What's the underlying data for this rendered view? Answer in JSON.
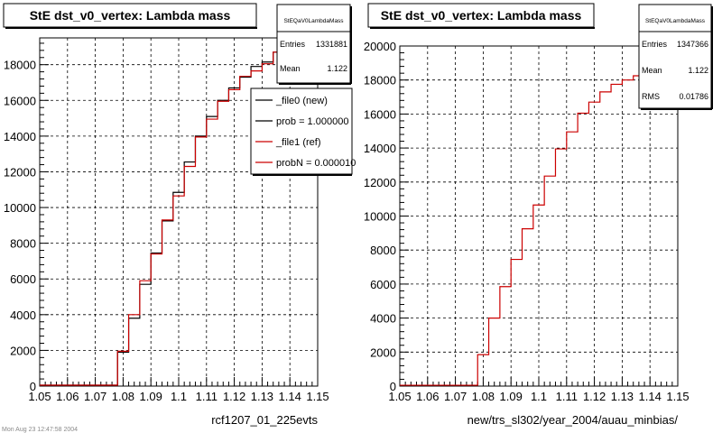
{
  "canvas": {
    "footer_text": "Mon Aug 23 12:47:58 2004"
  },
  "chart_data": [
    {
      "type": "histogram-step",
      "title": "StE dst_v0_vertex: Lambda mass",
      "xlabel": "rcf1207_01_225evts",
      "ylabel": "",
      "xlim": [
        1.05,
        1.15
      ],
      "ylim": [
        0,
        19500
      ],
      "xticks": [
        1.05,
        1.06,
        1.07,
        1.08,
        1.09,
        1.1,
        1.11,
        1.12,
        1.13,
        1.14,
        1.15
      ],
      "xtick_labels": [
        "1.05",
        "1.06",
        "1.07",
        "1.08",
        "1.09",
        "1.1",
        "1.11",
        "1.12",
        "1.13",
        "1.14",
        "1.15"
      ],
      "yticks": [
        0,
        2000,
        4000,
        6000,
        8000,
        10000,
        12000,
        14000,
        16000,
        18000
      ],
      "grid": true,
      "stats_box": {
        "title": "StEQaV0LambdaMass",
        "rows": [
          {
            "label": "Entries",
            "value": "1331881"
          },
          {
            "label": "Mean",
            "value": "1.122"
          }
        ]
      },
      "legend": {
        "position": "top-right",
        "entries": [
          "_file0 (new)",
          "prob = 1.000000",
          "_file1 (ref)",
          "probN = 0.000010"
        ],
        "colors": [
          "#000000",
          "#000000",
          "#cc0000",
          "#cc0000"
        ]
      },
      "bin_edges": [
        1.05,
        1.078,
        1.082,
        1.086,
        1.09,
        1.094,
        1.098,
        1.102,
        1.106,
        1.11,
        1.114,
        1.118,
        1.122,
        1.126,
        1.13,
        1.134,
        1.138,
        1.142,
        1.146
      ],
      "series": [
        {
          "color": "#000000",
          "values": [
            50,
            1900,
            3800,
            5700,
            7450,
            9250,
            10850,
            12550,
            14000,
            15100,
            16000,
            16700,
            17300,
            17900,
            18150,
            18700,
            19050,
            19100
          ]
        },
        {
          "color": "#cc0000",
          "values": [
            50,
            1950,
            4000,
            5900,
            7400,
            9300,
            10650,
            12300,
            13950,
            14950,
            15950,
            16600,
            17350,
            17650,
            18050,
            18700,
            18700,
            19200
          ]
        }
      ]
    },
    {
      "type": "histogram-step",
      "title": "StE dst_v0_vertex: Lambda mass",
      "xlabel": "new/trs_sl302/year_2004/auau_minbias/",
      "ylabel": "",
      "xlim": [
        1.05,
        1.15
      ],
      "ylim": [
        0,
        20000
      ],
      "xticks": [
        1.05,
        1.06,
        1.07,
        1.08,
        1.09,
        1.1,
        1.11,
        1.12,
        1.13,
        1.14,
        1.15
      ],
      "xtick_labels": [
        "1.05",
        "1.06",
        "1.07",
        "1.08",
        "1.09",
        "1.1",
        "1.11",
        "1.12",
        "1.13",
        "1.14",
        "1.15"
      ],
      "yticks": [
        0,
        2000,
        4000,
        6000,
        8000,
        10000,
        12000,
        14000,
        16000,
        18000,
        20000
      ],
      "grid": true,
      "stats_box": {
        "title": "StEQaV0LambdaMass",
        "rows": [
          {
            "label": "Entries",
            "value": "1347366"
          },
          {
            "label": "Mean",
            "value": "1.122"
          },
          {
            "label": "RMS",
            "value": "0.01786"
          }
        ]
      },
      "legend": null,
      "bin_edges": [
        1.05,
        1.078,
        1.082,
        1.086,
        1.09,
        1.094,
        1.098,
        1.102,
        1.106,
        1.11,
        1.114,
        1.118,
        1.122,
        1.126,
        1.13,
        1.134,
        1.138,
        1.142,
        1.146
      ],
      "series": [
        {
          "color": "#cc0000",
          "values": [
            50,
            1850,
            4000,
            5850,
            7450,
            9250,
            10650,
            12350,
            13950,
            14950,
            16050,
            16700,
            17300,
            17750,
            18000,
            18250,
            18600,
            18800
          ]
        }
      ]
    }
  ]
}
